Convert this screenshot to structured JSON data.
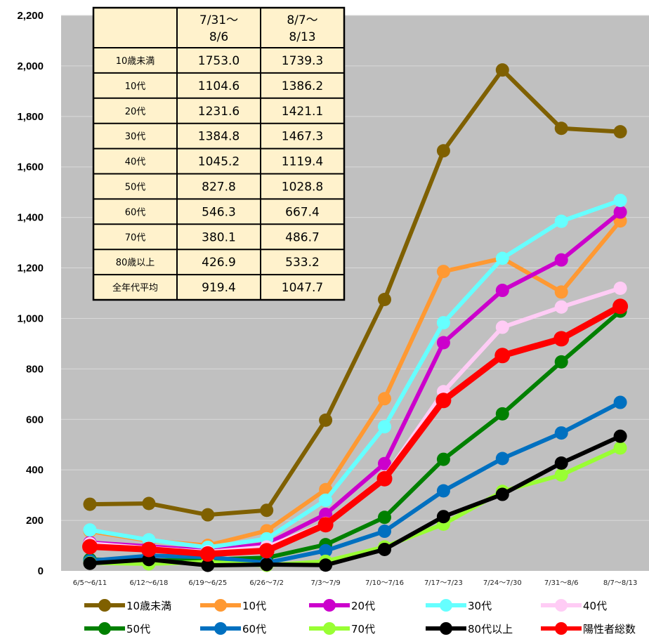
{
  "chart_data": {
    "type": "line",
    "title": "",
    "xlabel": "",
    "ylabel": "",
    "ylim": [
      0,
      2200
    ],
    "yticks": [
      "0",
      "200",
      "400",
      "600",
      "800",
      "1,000",
      "1,200",
      "1,400",
      "1,600",
      "1,800",
      "2,000",
      "2,200"
    ],
    "grid": true,
    "legend_position": "bottom",
    "categories": [
      "6/5～6/11",
      "6/12～6/18",
      "6/19～6/25",
      "6/26～7/2",
      "7/3～7/9",
      "7/10～7/16",
      "7/17～7/23",
      "7/24～7/30",
      "7/31～8/6",
      "8/7～8/13"
    ],
    "series": [
      {
        "name": "10歳未満",
        "color": "#7f6000",
        "values": [
          264,
          267,
          222,
          240,
          597,
          1075,
          1664,
          1984,
          1753.0,
          1739.3
        ]
      },
      {
        "name": "10代",
        "color": "#ff9933",
        "values": [
          157,
          120,
          101,
          159,
          322,
          682,
          1186,
          1238,
          1104.6,
          1386.2
        ]
      },
      {
        "name": "20代",
        "color": "#cc00cc",
        "values": [
          112,
          97,
          80,
          107,
          224,
          425,
          904,
          1111,
          1231.6,
          1421.1
        ]
      },
      {
        "name": "30代",
        "color": "#66ffff",
        "values": [
          162,
          123,
          93,
          127,
          280,
          571,
          983,
          1238,
          1384.8,
          1467.3
        ]
      },
      {
        "name": "40代",
        "color": "#ffccf5",
        "values": [
          108,
          90,
          75,
          95,
          188,
          372,
          710,
          965,
          1045.2,
          1119.4
        ]
      },
      {
        "name": "50代",
        "color": "#008000",
        "values": [
          45,
          40,
          45,
          52,
          104,
          212,
          442,
          622,
          827.8,
          1028.8
        ]
      },
      {
        "name": "60代",
        "color": "#0070c0",
        "values": [
          40,
          60,
          55,
          32,
          80,
          157,
          317,
          445,
          546.3,
          667.4
        ]
      },
      {
        "name": "70代",
        "color": "#99ff33",
        "values": [
          32,
          28,
          35,
          22,
          38,
          95,
          185,
          315,
          380.1,
          486.7
        ]
      },
      {
        "name": "80代以上",
        "color": "#000000",
        "values": [
          30,
          45,
          22,
          25,
          23,
          85,
          215,
          303,
          426.9,
          533.2
        ]
      },
      {
        "name": "陽性者総数",
        "color": "#ff0000",
        "values": [
          96,
          85,
          67,
          80,
          183,
          365,
          675,
          853,
          919.4,
          1047.7
        ]
      }
    ]
  },
  "table": {
    "headers": [
      "",
      "7/31～\n8/6",
      "8/7～\n8/13"
    ],
    "rows": [
      {
        "label": "10歳未満",
        "a": "1753.0",
        "b": "1739.3"
      },
      {
        "label": "10代",
        "a": "1104.6",
        "b": "1386.2"
      },
      {
        "label": "20代",
        "a": "1231.6",
        "b": "1421.1"
      },
      {
        "label": "30代",
        "a": "1384.8",
        "b": "1467.3"
      },
      {
        "label": "40代",
        "a": "1045.2",
        "b": "1119.4"
      },
      {
        "label": "50代",
        "a": "827.8",
        "b": "1028.8"
      },
      {
        "label": "60代",
        "a": "546.3",
        "b": "667.4"
      },
      {
        "label": "70代",
        "a": "380.1",
        "b": "486.7"
      },
      {
        "label": "80歳以上",
        "a": "426.9",
        "b": "533.2"
      },
      {
        "label": "全年代平均",
        "a": "919.4",
        "b": "1047.7"
      }
    ]
  }
}
